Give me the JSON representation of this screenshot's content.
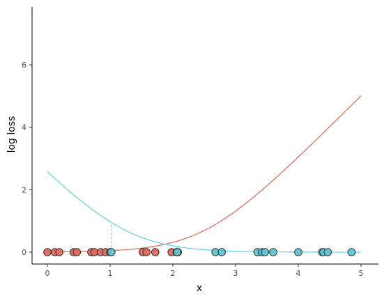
{
  "chart_data": {
    "type": "scatter",
    "title": "",
    "xlabel": "x",
    "ylabel": "log loss",
    "xlim": [
      -0.24,
      5.25
    ],
    "ylim": [
      -0.4,
      7.9
    ],
    "x_ticks": [
      0,
      1,
      2,
      3,
      4,
      5
    ],
    "y_ticks": [
      0,
      2,
      4,
      6
    ],
    "grid": false,
    "legend": "none",
    "colors": {
      "red": "#e06a5e",
      "cyan": "#5dc5d3",
      "red_line": "#dd6654",
      "cyan_line": "#5ccfe0",
      "axis": "#000000",
      "point_edge": "#333333"
    },
    "curves": [
      {
        "color": "red",
        "x_range": [
          0,
          5
        ],
        "formula": "log(1+exp(2*(x-2.5)))"
      },
      {
        "color": "cyan",
        "x_range": [
          0,
          5
        ],
        "formula": "log(1+exp(-2*(x-1.25)))"
      }
    ],
    "red_points_x": [
      0.0,
      0.12,
      0.19,
      0.42,
      0.47,
      0.7,
      0.75,
      0.85,
      0.93,
      1.0,
      1.52,
      1.58,
      1.72,
      1.98,
      2.06,
      2.08
    ],
    "cyan_points_x": [
      1.02,
      2.07,
      2.68,
      2.78,
      3.35,
      3.42,
      3.47,
      3.6,
      4.0,
      4.38,
      4.4,
      4.47,
      4.85
    ],
    "residual_lines_x": [
      1.02,
      2.07,
      2.68,
      2.78
    ]
  }
}
